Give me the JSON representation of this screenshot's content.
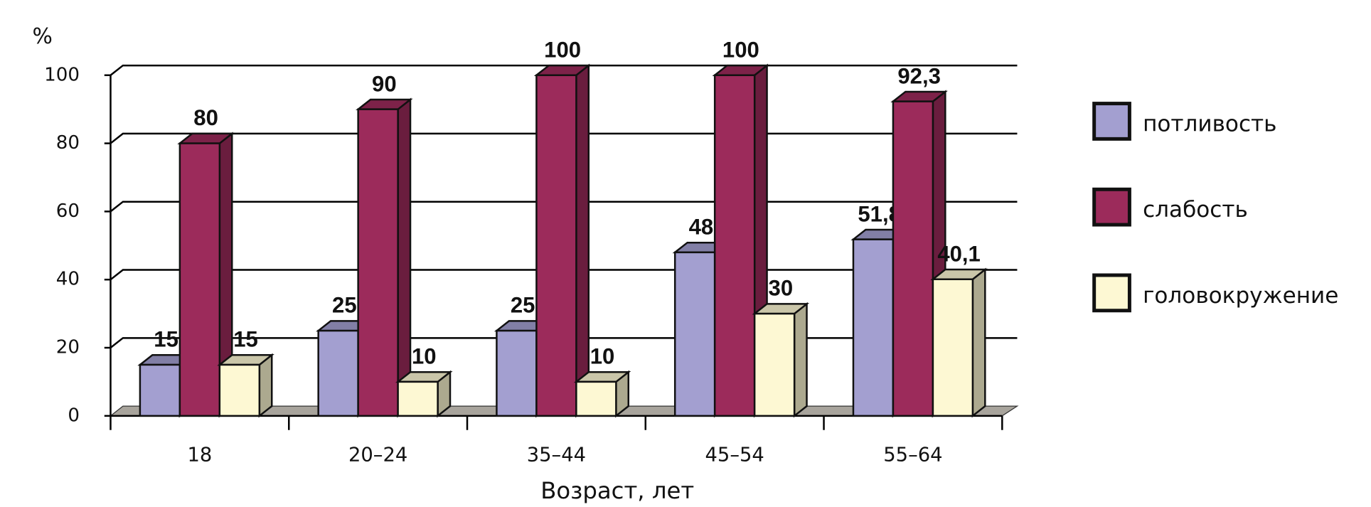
{
  "chart_data": {
    "type": "bar3d",
    "y_axis_title": "%",
    "x_axis_title": "Возраст, лет",
    "categories": [
      "18",
      "20–24",
      "35–44",
      "45–54",
      "55–64"
    ],
    "series": [
      {
        "name": "потливость",
        "color": "#a39fd0",
        "values": [
          15,
          25,
          25,
          48,
          51.8
        ],
        "value_labels": [
          "15",
          "25",
          "25",
          "48",
          "51,8"
        ]
      },
      {
        "name": "слабость",
        "color": "#9c2b5b",
        "values": [
          80,
          90,
          100,
          100,
          92.3
        ],
        "value_labels": [
          "80",
          "90",
          "100",
          "100",
          "92,3"
        ]
      },
      {
        "name": "головокружение",
        "color": "#fdf8d3",
        "values": [
          15,
          10,
          10,
          30,
          40.1
        ],
        "value_labels": [
          "15",
          "10",
          "10",
          "30",
          "40,1"
        ]
      }
    ],
    "ylim": [
      0,
      100
    ],
    "yticks": [
      0,
      20,
      40,
      60,
      80,
      100
    ],
    "grid": true,
    "legend": "right"
  }
}
